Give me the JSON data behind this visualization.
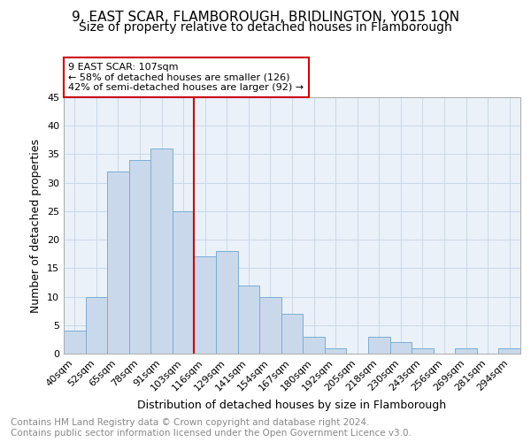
{
  "title": "9, EAST SCAR, FLAMBOROUGH, BRIDLINGTON, YO15 1QN",
  "subtitle": "Size of property relative to detached houses in Flamborough",
  "xlabel": "Distribution of detached houses by size in Flamborough",
  "ylabel": "Number of detached properties",
  "categories": [
    "40sqm",
    "52sqm",
    "65sqm",
    "78sqm",
    "91sqm",
    "103sqm",
    "116sqm",
    "129sqm",
    "141sqm",
    "154sqm",
    "167sqm",
    "180sqm",
    "192sqm",
    "205sqm",
    "218sqm",
    "230sqm",
    "243sqm",
    "256sqm",
    "269sqm",
    "281sqm",
    "294sqm"
  ],
  "values": [
    4,
    10,
    32,
    34,
    36,
    25,
    17,
    18,
    12,
    10,
    7,
    3,
    1,
    0,
    3,
    2,
    1,
    0,
    1,
    0,
    1
  ],
  "bar_color": "#c9d9eb",
  "bar_edge_color": "#7aadd4",
  "vline_x": 5.5,
  "vline_color": "#cc0000",
  "annotation_title": "9 EAST SCAR: 107sqm",
  "annotation_line1": "← 58% of detached houses are smaller (126)",
  "annotation_line2": "42% of semi-detached houses are larger (92) →",
  "annotation_box_color": "#ffffff",
  "annotation_box_edge": "#cc0000",
  "ylim": [
    0,
    45
  ],
  "footer_line1": "Contains HM Land Registry data © Crown copyright and database right 2024.",
  "footer_line2": "Contains public sector information licensed under the Open Government Licence v3.0.",
  "bg_color": "#ffffff",
  "grid_color": "#c8d8e8",
  "title_fontsize": 11,
  "subtitle_fontsize": 10,
  "axis_label_fontsize": 9,
  "tick_fontsize": 8,
  "annotation_fontsize": 8,
  "footer_fontsize": 7.5
}
